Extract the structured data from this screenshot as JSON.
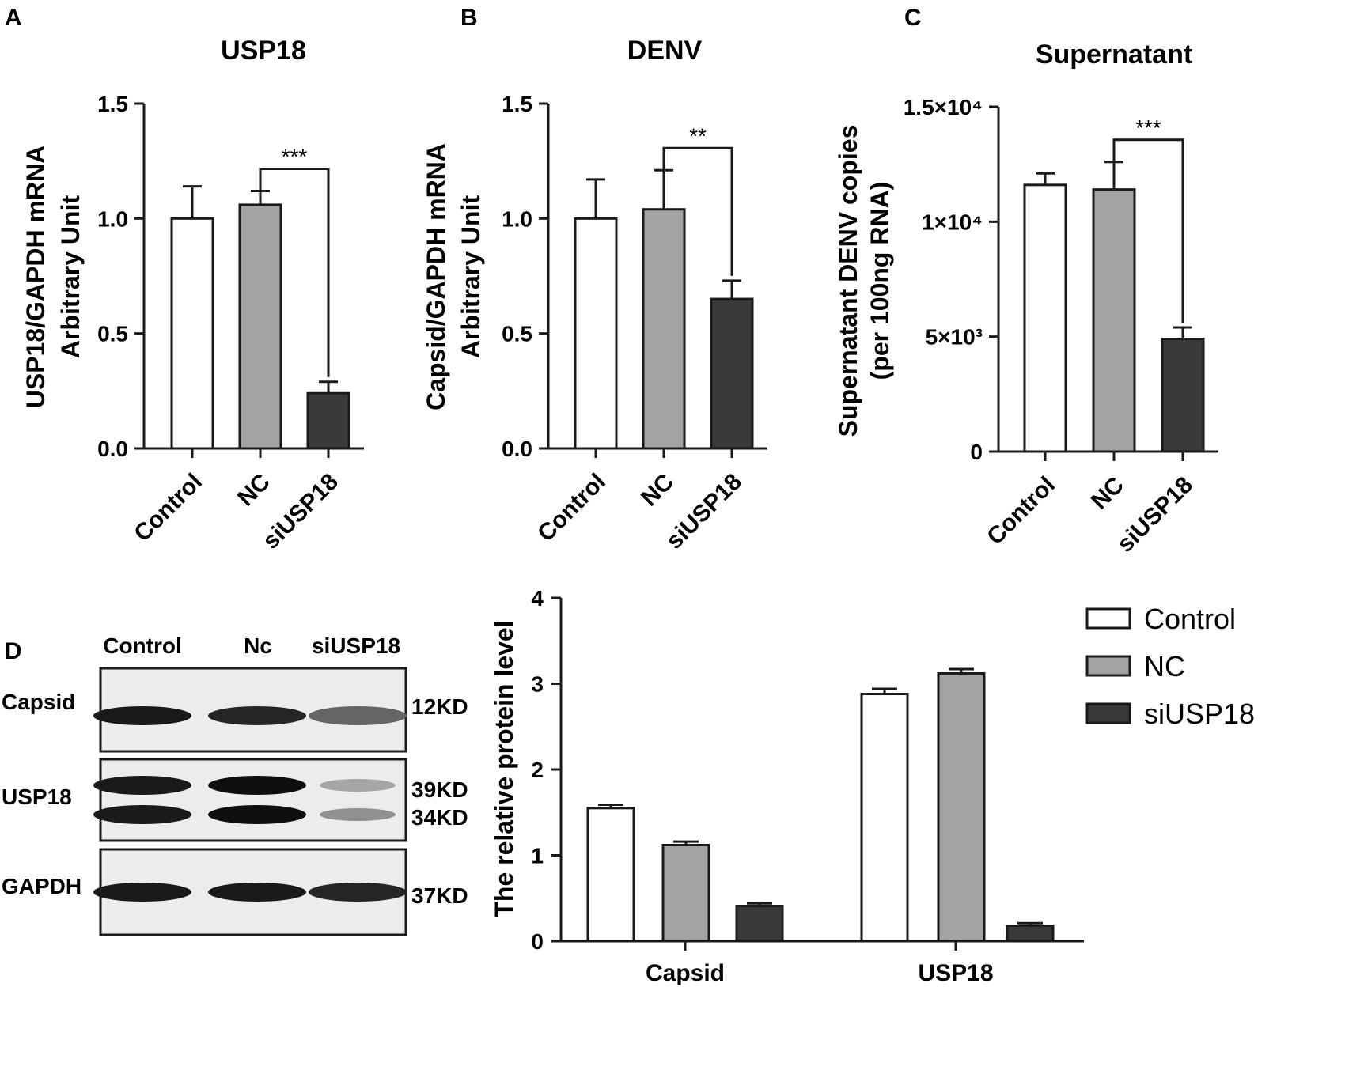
{
  "panels": {
    "a": "A",
    "b": "B",
    "c": "C",
    "d": "D"
  },
  "colors": {
    "control": "#ffffff",
    "nc": "#a3a3a6",
    "si": "#3a3a3a",
    "axis": "#1a1a1a"
  },
  "chart_data": [
    {
      "type": "bar",
      "title": "USP18",
      "ylabel": [
        "USP18/GAPDH mRNA",
        "Arbitrary Unit"
      ],
      "categories": [
        "Control",
        "NC",
        "siUSP18"
      ],
      "values": [
        1.0,
        1.06,
        0.24
      ],
      "errors": [
        0.14,
        0.06,
        0.05
      ],
      "ylim": [
        0,
        1.5
      ],
      "yticks": [
        "0.0",
        "0.5",
        "1.0",
        "1.5"
      ],
      "significance": {
        "from": "NC",
        "to": "siUSP18",
        "label": "***"
      }
    },
    {
      "type": "bar",
      "title": "DENV",
      "ylabel": [
        "Capsid/GAPDH mRNA",
        "Arbitrary Unit"
      ],
      "categories": [
        "Control",
        "NC",
        "siUSP18"
      ],
      "values": [
        1.0,
        1.04,
        0.65
      ],
      "errors": [
        0.17,
        0.17,
        0.08
      ],
      "ylim": [
        0,
        1.5
      ],
      "yticks": [
        "0.0",
        "0.5",
        "1.0",
        "1.5"
      ],
      "significance": {
        "from": "NC",
        "to": "siUSP18",
        "label": "**"
      }
    },
    {
      "type": "bar",
      "title": "Supernatant",
      "ylabel": [
        "Supernatant DENV copies",
        "(per 100ng RNA)"
      ],
      "categories": [
        "Control",
        "NC",
        "siUSP18"
      ],
      "values": [
        11600,
        11400,
        4900
      ],
      "errors": [
        500,
        1200,
        500
      ],
      "ylim": [
        0,
        15000
      ],
      "yticks": [
        "0",
        "5×10³",
        "1×10⁴",
        "1.5×10⁴"
      ],
      "significance": {
        "from": "NC",
        "to": "siUSP18",
        "label": "***"
      }
    },
    {
      "type": "bar",
      "ylabel": [
        "The relative protein level"
      ],
      "categories": [
        "Capsid",
        "USP18"
      ],
      "series": [
        {
          "name": "Control",
          "values": [
            1.55,
            2.88
          ],
          "errors": [
            0.04,
            0.06
          ]
        },
        {
          "name": "NC",
          "values": [
            1.12,
            3.12
          ],
          "errors": [
            0.04,
            0.05
          ]
        },
        {
          "name": "siUSP18",
          "values": [
            0.41,
            0.18
          ],
          "errors": [
            0.03,
            0.03
          ]
        }
      ],
      "ylim": [
        0,
        4
      ],
      "yticks": [
        "0",
        "1",
        "2",
        "3",
        "4"
      ],
      "legend": "top-right"
    }
  ],
  "western_blot": {
    "lanes": [
      "Control",
      "Nc",
      "siUSP18"
    ],
    "rows": [
      {
        "label": "Capsid",
        "markers": [
          "12KD"
        ],
        "intensities": [
          [
            0.95,
            0.9,
            0.6
          ]
        ]
      },
      {
        "label": "USP18",
        "markers": [
          "39KD",
          "34KD"
        ],
        "intensities": [
          [
            0.95,
            1.0,
            0.3
          ],
          [
            0.95,
            1.0,
            0.4
          ]
        ]
      },
      {
        "label": "GAPDH",
        "markers": [
          "37KD"
        ],
        "intensities": [
          [
            0.95,
            0.95,
            0.9
          ]
        ]
      }
    ]
  }
}
